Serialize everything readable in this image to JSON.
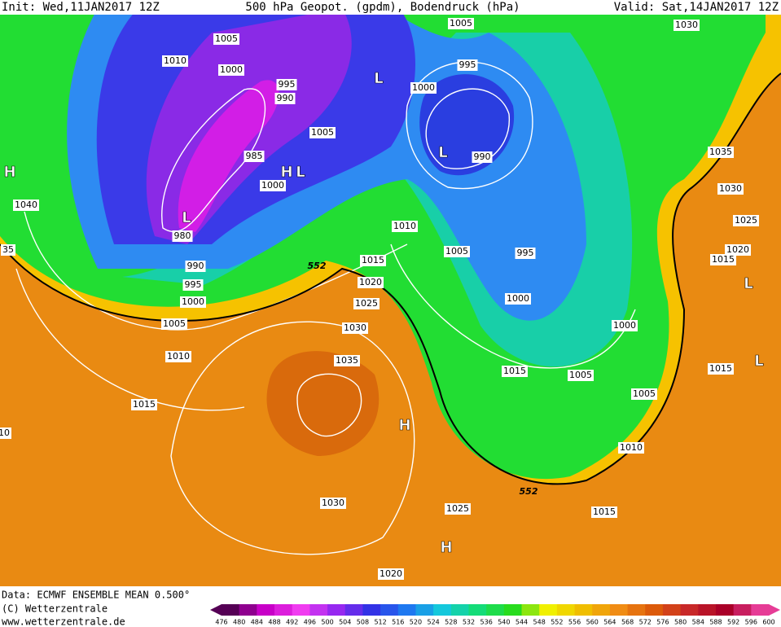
{
  "header": {
    "init": "Init: Wed,11JAN2017 12Z",
    "title": "500 hPa Geopot. (gpdm), Bodendruck (hPa)",
    "valid": "Valid: Sat,14JAN2017 12Z"
  },
  "isobar_labels": [
    1005,
    1010,
    1000,
    995,
    990,
    1005,
    985,
    1000,
    980,
    990,
    995,
    1000,
    1005,
    1010,
    1015,
    1040,
    35,
    1005,
    995,
    1000,
    990,
    1010,
    1015,
    1020,
    1025,
    1030,
    1035,
    1005,
    995,
    1000,
    1000,
    1015,
    1005,
    1005,
    1010,
    1030,
    1035,
    1030,
    1025,
    1020,
    1015,
    1015,
    1030,
    1025,
    1015,
    1020,
    10
  ],
  "geopotential_labels": [
    552,
    552
  ],
  "pressure_centers": [
    "L",
    "L",
    "H",
    "L",
    "L",
    "H",
    "H",
    "H",
    "L",
    "L"
  ],
  "footer": {
    "source": "Data: ECMWF ENSEMBLE MEAN 0.500°",
    "copyright": "(C) Wetterzentrale",
    "url": "www.wetterzentrale.de"
  },
  "colorbar": {
    "labels": [
      476,
      480,
      484,
      488,
      492,
      496,
      500,
      504,
      508,
      512,
      516,
      520,
      524,
      528,
      532,
      536,
      540,
      544,
      548,
      552,
      556,
      560,
      564,
      568,
      572,
      576,
      580,
      584,
      588,
      592,
      596,
      600
    ]
  }
}
